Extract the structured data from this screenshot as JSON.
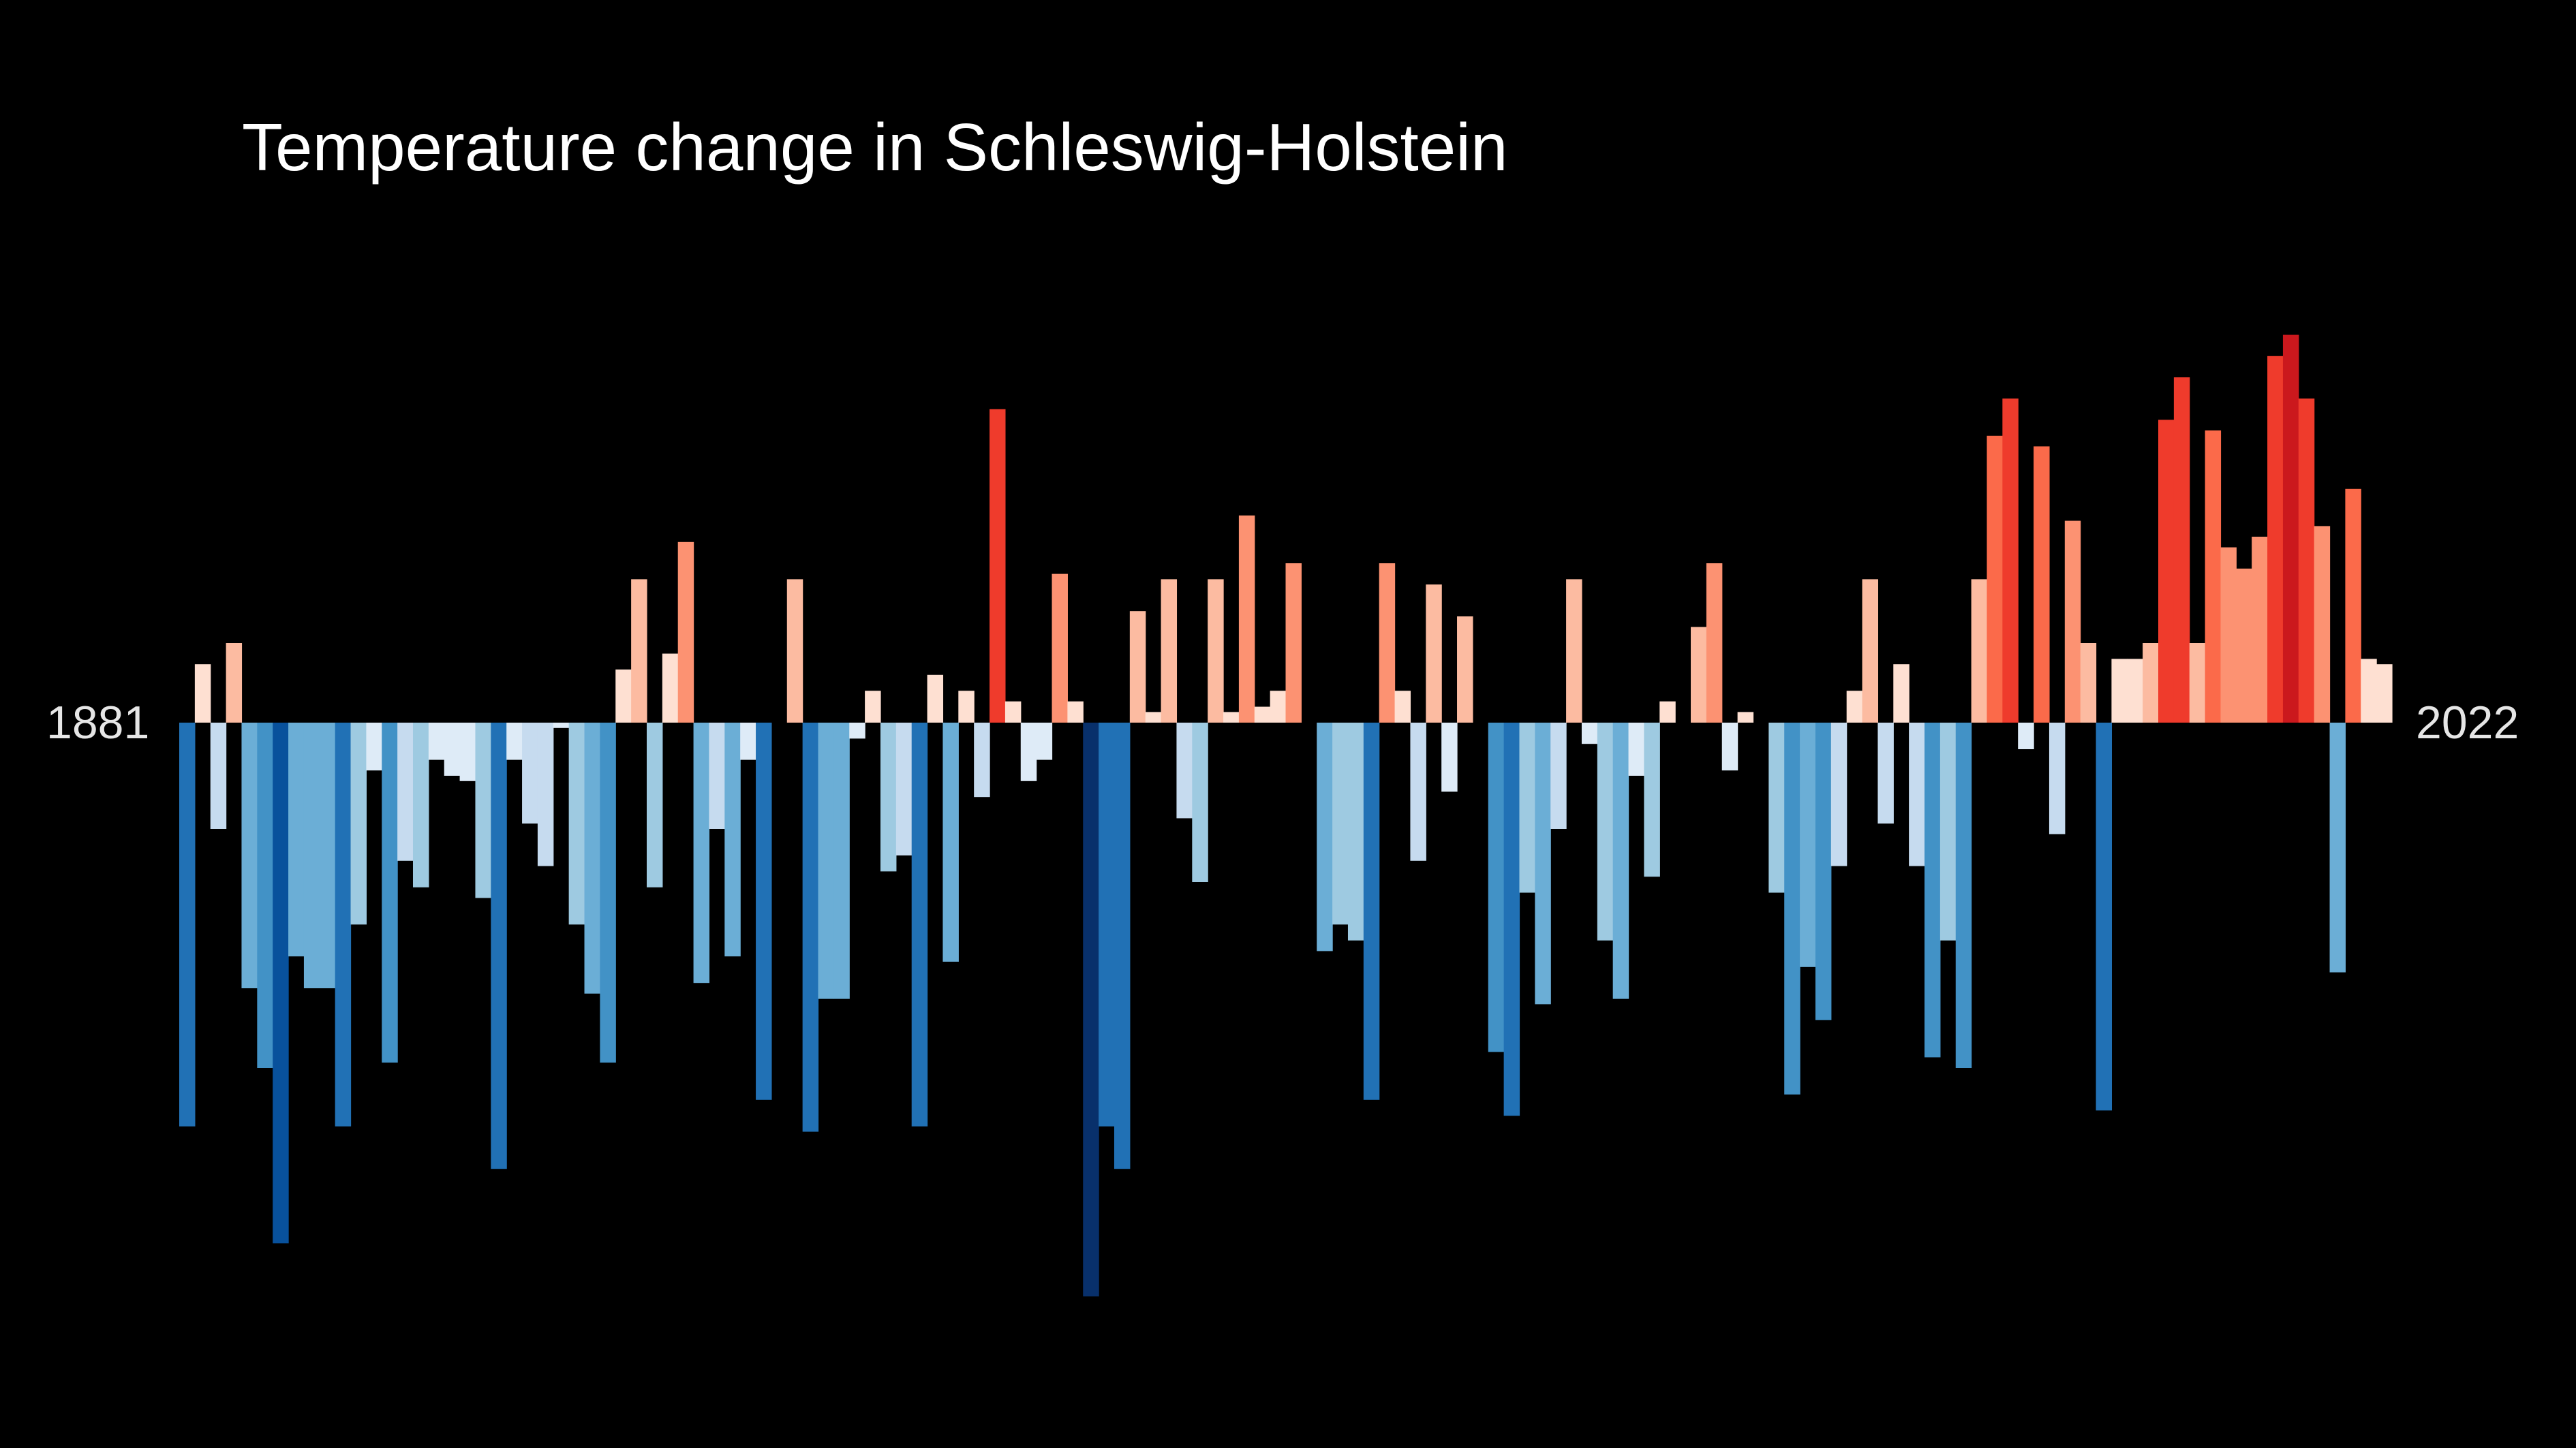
{
  "chart_data": {
    "type": "bar",
    "title": "Temperature change in Schleswig-Holstein",
    "start_year": "1881",
    "end_year": "2022",
    "x": [
      1881,
      1882,
      1883,
      1884,
      1885,
      1886,
      1887,
      1888,
      1889,
      1890,
      1891,
      1892,
      1893,
      1894,
      1895,
      1896,
      1897,
      1898,
      1899,
      1900,
      1901,
      1902,
      1903,
      1904,
      1905,
      1906,
      1907,
      1908,
      1909,
      1910,
      1911,
      1912,
      1913,
      1914,
      1915,
      1916,
      1917,
      1918,
      1919,
      1920,
      1921,
      1922,
      1923,
      1924,
      1925,
      1926,
      1927,
      1928,
      1929,
      1930,
      1931,
      1932,
      1933,
      1934,
      1935,
      1936,
      1937,
      1938,
      1939,
      1940,
      1941,
      1942,
      1943,
      1944,
      1945,
      1946,
      1947,
      1948,
      1949,
      1950,
      1951,
      1952,
      1953,
      1954,
      1955,
      1956,
      1957,
      1958,
      1959,
      1960,
      1961,
      1962,
      1963,
      1964,
      1965,
      1966,
      1967,
      1968,
      1969,
      1970,
      1971,
      1972,
      1973,
      1974,
      1975,
      1976,
      1977,
      1978,
      1979,
      1980,
      1981,
      1982,
      1983,
      1984,
      1985,
      1986,
      1987,
      1988,
      1989,
      1990,
      1991,
      1992,
      1993,
      1994,
      1995,
      1996,
      1997,
      1998,
      1999,
      2000,
      2001,
      2002,
      2003,
      2004,
      2005,
      2006,
      2007,
      2008,
      2009,
      2010,
      2011,
      2012,
      2013,
      2014,
      2015,
      2016,
      2017,
      2018,
      2019,
      2020,
      2021,
      2022
    ],
    "values": [
      -0.76,
      0.11,
      -0.2,
      0.15,
      -0.5,
      -0.65,
      -0.98,
      -0.44,
      -0.5,
      -0.5,
      -0.76,
      -0.38,
      -0.09,
      -0.64,
      -0.26,
      -0.31,
      -0.07,
      -0.1,
      -0.11,
      -0.33,
      -0.84,
      -0.07,
      -0.19,
      -0.27,
      -0.01,
      -0.38,
      -0.51,
      -0.64,
      0.1,
      0.27,
      -0.31,
      0.13,
      0.34,
      -0.49,
      -0.2,
      -0.44,
      -0.07,
      -0.71,
      0.0,
      0.27,
      -0.77,
      -0.52,
      -0.52,
      -0.03,
      0.06,
      -0.28,
      -0.25,
      -0.76,
      0.09,
      -0.45,
      0.06,
      -0.14,
      0.59,
      0.04,
      -0.11,
      -0.07,
      0.28,
      0.04,
      -1.08,
      -0.76,
      -0.84,
      0.21,
      0.02,
      0.27,
      -0.18,
      -0.3,
      0.27,
      0.02,
      0.39,
      0.03,
      0.06,
      0.3,
      0.0,
      -0.43,
      -0.38,
      -0.41,
      -0.71,
      0.3,
      0.06,
      -0.26,
      0.26,
      -0.13,
      0.2,
      0.0,
      -0.62,
      -0.74,
      -0.32,
      -0.53,
      -0.2,
      0.27,
      -0.04,
      -0.41,
      -0.52,
      -0.1,
      -0.29,
      0.04,
      0.0,
      0.18,
      0.3,
      -0.09,
      0.02,
      0.0,
      -0.32,
      -0.7,
      -0.46,
      -0.56,
      -0.27,
      0.06,
      0.27,
      -0.19,
      0.11,
      -0.27,
      -0.63,
      -0.41,
      -0.65,
      0.27,
      0.54,
      0.61,
      -0.05,
      0.52,
      -0.21,
      0.38,
      0.15,
      -0.73,
      0.12,
      0.12,
      0.15,
      0.57,
      0.65,
      0.15,
      0.55,
      0.33,
      0.29,
      0.35,
      0.69,
      0.73,
      0.61,
      0.37,
      -0.47,
      0.44,
      0.12,
      0.11
    ]
  },
  "colors": {
    "background": "#000000",
    "title_text": "#ffffff",
    "year_label_text": "#e6e6e6",
    "cold_scale": [
      "#deebf7",
      "#c6dbef",
      "#9ecae1",
      "#6baed6",
      "#4292c6",
      "#2171b5",
      "#08519c",
      "#08306b"
    ],
    "warm_scale": [
      "#fee0d2",
      "#fcbba1",
      "#fc9272",
      "#fb6a4a",
      "#ef3b2c",
      "#cb181d",
      "#a50f15",
      "#67000d"
    ]
  }
}
